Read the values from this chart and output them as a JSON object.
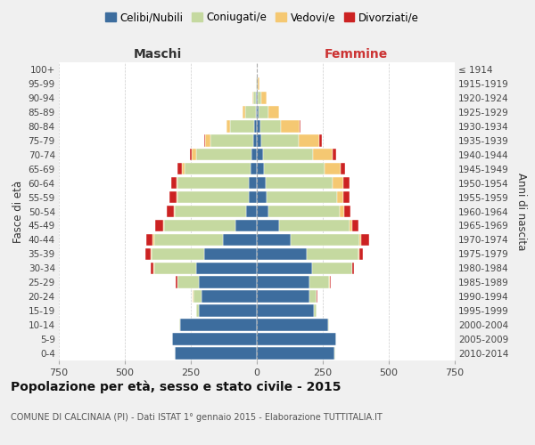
{
  "age_groups": [
    "0-4",
    "5-9",
    "10-14",
    "15-19",
    "20-24",
    "25-29",
    "30-34",
    "35-39",
    "40-44",
    "45-49",
    "50-54",
    "55-59",
    "60-64",
    "65-69",
    "70-74",
    "75-79",
    "80-84",
    "85-89",
    "90-94",
    "95-99",
    "100+"
  ],
  "birth_years": [
    "2010-2014",
    "2005-2009",
    "2000-2004",
    "1995-1999",
    "1990-1994",
    "1985-1989",
    "1980-1984",
    "1975-1979",
    "1970-1974",
    "1965-1969",
    "1960-1964",
    "1955-1959",
    "1950-1954",
    "1945-1949",
    "1940-1944",
    "1935-1939",
    "1930-1934",
    "1925-1929",
    "1920-1924",
    "1915-1919",
    "≤ 1914"
  ],
  "male": {
    "celibi": [
      310,
      320,
      290,
      220,
      210,
      220,
      230,
      200,
      130,
      80,
      40,
      30,
      30,
      25,
      20,
      15,
      10,
      5,
      3,
      1,
      0
    ],
    "coniugati": [
      2,
      2,
      5,
      10,
      30,
      80,
      160,
      200,
      260,
      270,
      270,
      270,
      270,
      250,
      210,
      160,
      90,
      40,
      10,
      2,
      0
    ],
    "vedovi": [
      0,
      0,
      0,
      0,
      2,
      2,
      2,
      2,
      5,
      5,
      5,
      5,
      5,
      10,
      15,
      20,
      15,
      10,
      5,
      2,
      0
    ],
    "divorziati": [
      0,
      0,
      0,
      0,
      2,
      5,
      10,
      20,
      25,
      30,
      25,
      25,
      20,
      15,
      10,
      5,
      0,
      0,
      0,
      0,
      0
    ]
  },
  "female": {
    "nubili": [
      295,
      300,
      270,
      215,
      200,
      200,
      210,
      190,
      130,
      85,
      45,
      38,
      33,
      28,
      22,
      18,
      12,
      8,
      5,
      2,
      0
    ],
    "coniugate": [
      2,
      2,
      3,
      10,
      25,
      75,
      150,
      195,
      260,
      265,
      270,
      265,
      255,
      230,
      190,
      140,
      80,
      35,
      12,
      3,
      0
    ],
    "vedove": [
      0,
      0,
      0,
      0,
      2,
      2,
      2,
      2,
      5,
      10,
      15,
      25,
      40,
      60,
      75,
      80,
      70,
      40,
      20,
      5,
      0
    ],
    "divorziate": [
      0,
      0,
      0,
      0,
      2,
      2,
      5,
      15,
      30,
      25,
      25,
      25,
      22,
      18,
      15,
      10,
      5,
      3,
      0,
      0,
      0
    ]
  },
  "colors": {
    "celibi": "#3d6d9e",
    "coniugati": "#c5d9a0",
    "vedovi": "#f5c872",
    "divorziati": "#cc2222"
  },
  "legend_labels": [
    "Celibi/Nubili",
    "Coniugati/e",
    "Vedovi/e",
    "Divorziati/e"
  ],
  "title": "Popolazione per età, sesso e stato civile - 2015",
  "subtitle": "COMUNE DI CALCINAIA (PI) - Dati ISTAT 1° gennaio 2015 - Elaborazione TUTTITALIA.IT",
  "xlabel_left": "Maschi",
  "xlabel_right": "Femmine",
  "ylabel_left": "Fasce di età",
  "ylabel_right": "Anni di nascita",
  "xlim": 750,
  "bg_color": "#f0f0f0",
  "plot_bg": "#ffffff"
}
